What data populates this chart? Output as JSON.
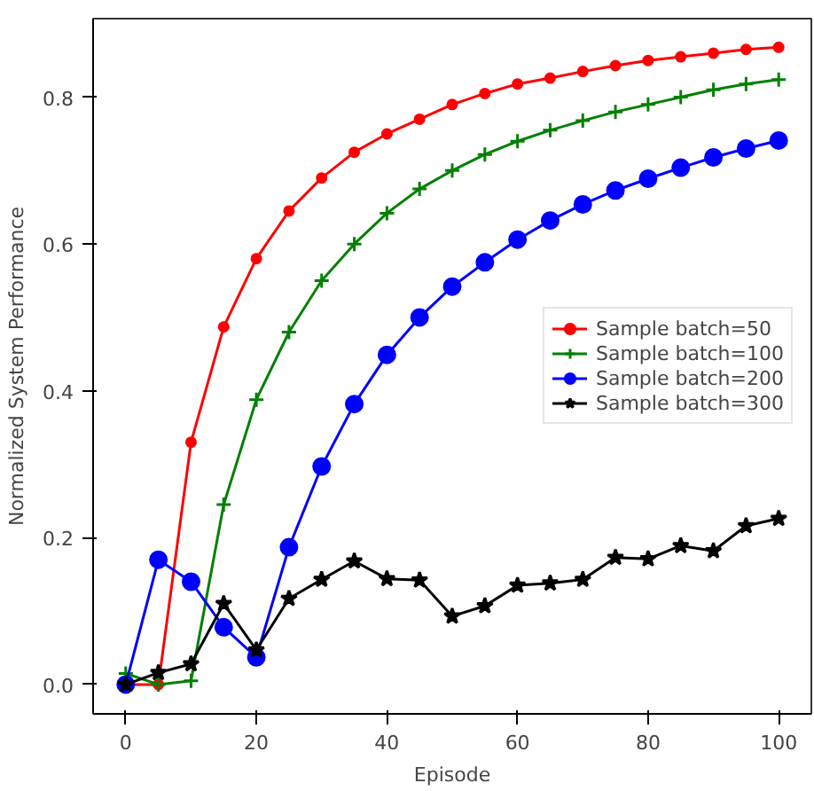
{
  "chart_data": {
    "type": "line",
    "xlabel": "Episode",
    "ylabel": "Normalized System Performance",
    "x": [
      0,
      5,
      10,
      15,
      20,
      25,
      30,
      35,
      40,
      45,
      50,
      55,
      60,
      65,
      70,
      75,
      80,
      85,
      90,
      95,
      100
    ],
    "xlim": [
      -5,
      105
    ],
    "ylim": [
      -0.04,
      0.907
    ],
    "xticks": [
      0,
      20,
      40,
      60,
      80,
      100
    ],
    "yticks": [
      {
        "value": 0,
        "label": "0.0"
      },
      0.2,
      0.4,
      0.6,
      0.8
    ],
    "grid": false,
    "legend": "right",
    "line_style": "solid",
    "series": [
      {
        "name": "Sample batch=50",
        "color": "#ff0000",
        "marker": "circle",
        "values": [
          0,
          0,
          0.33,
          0.487,
          0.58,
          0.645,
          0.69,
          0.725,
          0.75,
          0.77,
          0.79,
          0.805,
          0.818,
          0.826,
          0.835,
          0.843,
          0.85,
          0.855,
          0.86,
          0.865,
          0.868
        ]
      },
      {
        "name": "Sample batch=100",
        "color": "#008000",
        "marker": "cross",
        "values": [
          0.015,
          0.0,
          0.005,
          0.245,
          0.388,
          0.48,
          0.55,
          0.6,
          0.642,
          0.675,
          0.7,
          0.722,
          0.74,
          0.755,
          0.768,
          0.78,
          0.79,
          0.8,
          0.81,
          0.818,
          0.824
        ]
      },
      {
        "name": "Sample batch=200",
        "color": "#0000ff",
        "marker": "circle_big",
        "values": [
          0,
          0.17,
          0.14,
          0.078,
          0.037,
          0.187,
          0.297,
          0.382,
          0.449,
          0.5,
          0.542,
          0.575,
          0.606,
          0.632,
          0.654,
          0.673,
          0.689,
          0.704,
          0.718,
          0.73,
          0.741
        ]
      },
      {
        "name": "Sample batch=300",
        "color": "#000000",
        "marker": "star",
        "values": [
          0,
          0.016,
          0.028,
          0.11,
          0.047,
          0.117,
          0.143,
          0.168,
          0.144,
          0.142,
          0.093,
          0.107,
          0.135,
          0.138,
          0.143,
          0.173,
          0.171,
          0.189,
          0.182,
          0.216,
          0.226
        ]
      }
    ]
  }
}
